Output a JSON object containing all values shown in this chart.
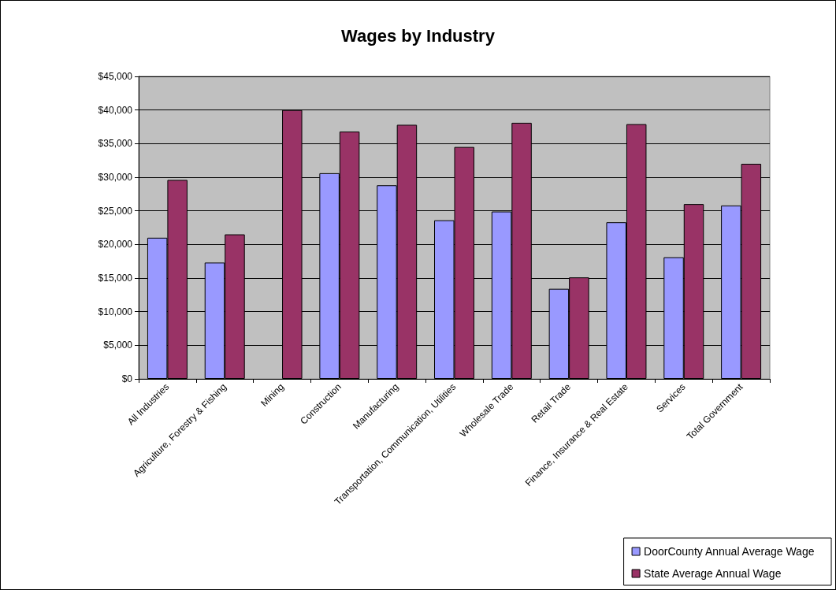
{
  "chart_data": {
    "type": "bar",
    "title": "Wages by Industry",
    "categories": [
      "All Industries",
      "Agriculture, Forestry & Fishing",
      "Mining",
      "Construction",
      "Manufacturing",
      "Transportation, Communication, Utilities",
      "Wholesale Trade",
      "Retail Trade",
      "Finance, Insurance & Real Estate",
      "Services",
      "Total Government"
    ],
    "series": [
      {
        "name": "DoorCounty Annual Average Wage",
        "color": "#9999ff",
        "values": [
          21000,
          17300,
          null,
          30600,
          28800,
          23600,
          24900,
          13400,
          23300,
          18100,
          25800
        ]
      },
      {
        "name": "State Average Annual Wage",
        "color": "#993366",
        "values": [
          29600,
          21500,
          40000,
          36800,
          37800,
          34500,
          38100,
          15100,
          37900,
          26000,
          32000
        ]
      }
    ],
    "ylim": [
      0,
      45000
    ],
    "yticks": [
      {
        "value": 0,
        "label": "$0"
      },
      {
        "value": 5000,
        "label": "$5,000"
      },
      {
        "value": 10000,
        "label": "$10,000"
      },
      {
        "value": 15000,
        "label": "$15,000"
      },
      {
        "value": 20000,
        "label": "$20,000"
      },
      {
        "value": 25000,
        "label": "$25,000"
      },
      {
        "value": 30000,
        "label": "$30,000"
      },
      {
        "value": 35000,
        "label": "$35,000"
      },
      {
        "value": 40000,
        "label": "$40,000"
      },
      {
        "value": 45000,
        "label": "$45,000"
      }
    ],
    "grid": "y",
    "legend": "bottom right"
  }
}
